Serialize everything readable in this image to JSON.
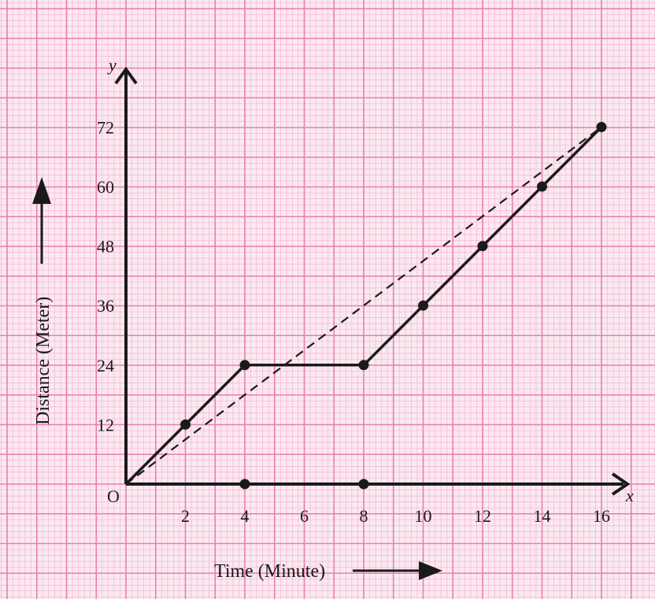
{
  "colors": {
    "paper": "#fbe9f1",
    "grid_minor": "#f3b5cf",
    "grid_major": "#e97fae",
    "ink": "#1a1a1a"
  },
  "chart_data": {
    "type": "line",
    "title": "",
    "xlabel": "Time (Minute)",
    "ylabel": "Distance (Meter)",
    "x_axis_letter": "x",
    "y_axis_letter": "y",
    "origin_label": "O",
    "xlim": [
      0,
      16
    ],
    "ylim": [
      0,
      72
    ],
    "xticks": [
      "2",
      "4",
      "6",
      "8",
      "10",
      "12",
      "14",
      "16"
    ],
    "yticks": [
      "12",
      "24",
      "36",
      "48",
      "60",
      "72"
    ],
    "grid": true,
    "series": [
      {
        "style": "solid",
        "x": [
          0,
          2,
          4,
          8,
          10,
          12,
          14,
          16
        ],
        "y": [
          0,
          12,
          24,
          24,
          36,
          48,
          60,
          72
        ]
      },
      {
        "style": "dashed",
        "x": [
          0,
          16
        ],
        "y": [
          0,
          72
        ]
      }
    ],
    "axis_points": [
      {
        "x": 4,
        "y": 0
      },
      {
        "x": 8,
        "y": 0
      }
    ]
  }
}
